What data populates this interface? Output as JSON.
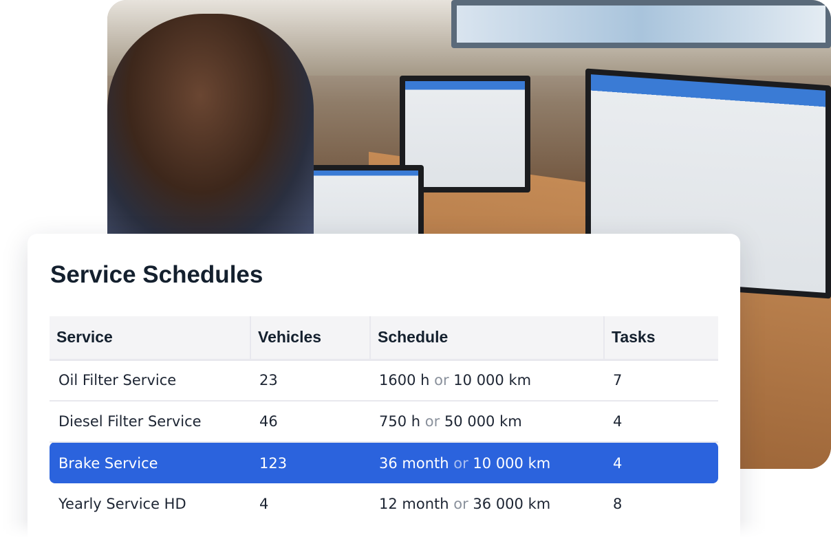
{
  "card": {
    "title": "Service Schedules",
    "columns": [
      "Service",
      "Vehicles",
      "Schedule",
      "Tasks"
    ],
    "rows": [
      {
        "service": "Oil Filter Service",
        "vehicles": "23",
        "a": "1600 h",
        "or": "or",
        "b": "10 000 km",
        "tasks": "7",
        "selected": false
      },
      {
        "service": "Diesel Filter Service",
        "vehicles": "46",
        "a": "750 h",
        "or": "or",
        "b": "50 000 km",
        "tasks": "4",
        "selected": false
      },
      {
        "service": "Brake Service",
        "vehicles": "123",
        "a": "36 month",
        "or": "or",
        "b": "10 000 km",
        "tasks": "4",
        "selected": true
      },
      {
        "service": "Yearly Service HD",
        "vehicles": "4",
        "a": "12 month",
        "or": "or",
        "b": "36 000 km",
        "tasks": "8",
        "selected": false
      }
    ]
  },
  "colors": {
    "accent": "#2b63dd",
    "header_bg": "#f4f4f6",
    "muted": "#8a919c"
  }
}
